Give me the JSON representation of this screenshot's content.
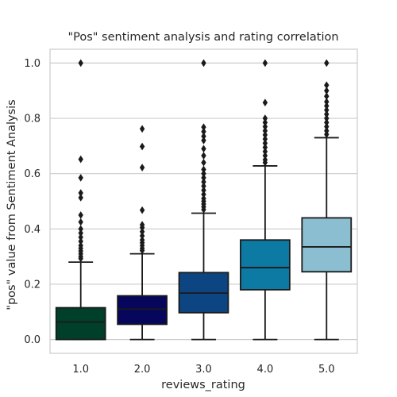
{
  "chart_data": {
    "type": "box",
    "title": "\"Pos\" sentiment analysis and rating correlation",
    "xlabel": "reviews_rating",
    "ylabel": "\"pos\" value from Sentiment Analysis",
    "ylim": [
      -0.05,
      1.05
    ],
    "yticks": [
      "0.0",
      "0.2",
      "0.4",
      "0.6",
      "0.8",
      "1.0"
    ],
    "ytick_values": [
      0.0,
      0.2,
      0.4,
      0.6,
      0.8,
      1.0
    ],
    "grid": true,
    "categories": [
      "1.0",
      "2.0",
      "3.0",
      "4.0",
      "5.0"
    ],
    "boxes": [
      {
        "category": "1.0",
        "color": "#00402a",
        "whisker_low": 0.0,
        "q1": 0.0,
        "median": 0.063,
        "q3": 0.115,
        "whisker_high": 0.28,
        "outliers": [
          1.0,
          0.652,
          0.585,
          0.53,
          0.513,
          0.45,
          0.425,
          0.4,
          0.385,
          0.37,
          0.355,
          0.34,
          0.33,
          0.32,
          0.31,
          0.3,
          0.293
        ]
      },
      {
        "category": "2.0",
        "color": "#06065c",
        "whisker_low": 0.0,
        "q1": 0.055,
        "median": 0.11,
        "q3": 0.158,
        "whisker_high": 0.31,
        "outliers": [
          0.762,
          0.698,
          0.622,
          0.468,
          0.415,
          0.405,
          0.39,
          0.375,
          0.36,
          0.35,
          0.34,
          0.33,
          0.322
        ]
      },
      {
        "category": "3.0",
        "color": "#0d4582",
        "whisker_low": 0.0,
        "q1": 0.097,
        "median": 0.168,
        "q3": 0.242,
        "whisker_high": 0.457,
        "outliers": [
          1.0,
          0.768,
          0.752,
          0.735,
          0.72,
          0.69,
          0.665,
          0.64,
          0.615,
          0.6,
          0.585,
          0.57,
          0.555,
          0.54,
          0.525,
          0.51,
          0.5,
          0.49,
          0.48,
          0.47
        ]
      },
      {
        "category": "4.0",
        "color": "#0d7aa3",
        "whisker_low": 0.0,
        "q1": 0.18,
        "median": 0.26,
        "q3": 0.36,
        "whisker_high": 0.628,
        "outliers": [
          1.0,
          0.857,
          0.8,
          0.785,
          0.77,
          0.755,
          0.74,
          0.725,
          0.71,
          0.695,
          0.68,
          0.665,
          0.65,
          0.64
        ]
      },
      {
        "category": "5.0",
        "color": "#8cbed2",
        "whisker_low": 0.0,
        "q1": 0.245,
        "median": 0.335,
        "q3": 0.44,
        "whisker_high": 0.73,
        "outliers": [
          1.0,
          0.92,
          0.9,
          0.88,
          0.86,
          0.845,
          0.83,
          0.815,
          0.8,
          0.785,
          0.77,
          0.755,
          0.742
        ]
      }
    ]
  }
}
